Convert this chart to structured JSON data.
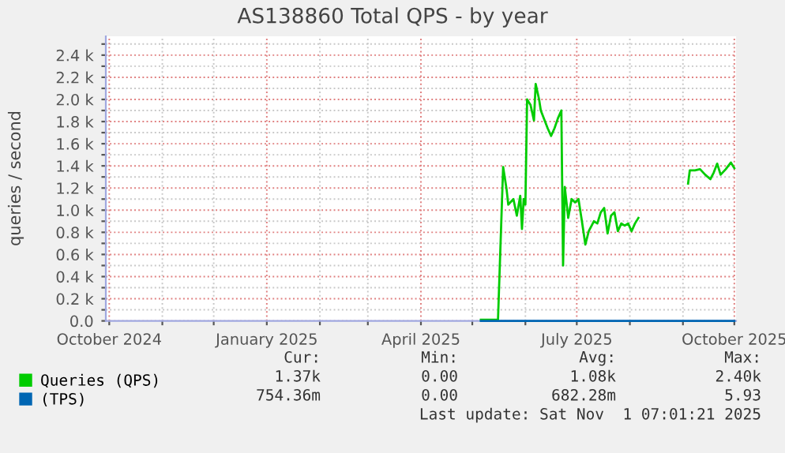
{
  "chart_data": {
    "type": "line",
    "title": "AS138860 Total QPS - by year",
    "ylabel": "queries / second",
    "series": [
      {
        "name": "Queries (QPS)",
        "color": "#00cc00",
        "x": [
          "2025-05-06",
          "2025-05-16",
          "2025-05-19",
          "2025-05-21",
          "2025-05-22",
          "2025-05-25",
          "2025-05-27",
          "2025-05-29",
          "2025-05-30",
          "2025-05-31",
          "2025-06-01",
          "2025-06-02",
          "2025-06-04",
          "2025-06-06",
          "2025-06-07",
          "2025-06-09",
          "2025-06-10",
          "2025-06-14",
          "2025-06-16",
          "2025-06-18",
          "2025-06-20",
          "2025-06-22",
          "2025-06-23",
          "2025-06-24",
          "2025-06-26",
          "2025-06-28",
          "2025-06-30",
          "2025-07-02",
          "2025-07-04",
          "2025-07-06",
          "2025-07-08",
          "2025-07-11",
          "2025-07-13",
          "2025-07-15",
          "2025-07-17",
          "2025-07-19",
          "2025-07-21",
          "2025-07-23",
          "2025-07-25",
          "2025-07-27",
          "2025-07-29",
          "2025-07-31",
          "2025-08-02",
          "2025-08-04",
          "2025-08-06",
          "2025-08-20",
          "2025-09-04",
          "2025-09-05",
          "2025-09-08",
          "2025-09-11",
          "2025-09-14",
          "2025-09-17",
          "2025-09-19",
          "2025-09-21",
          "2025-09-23",
          "2025-09-26",
          "2025-09-29",
          "2025-10-01"
        ],
        "values": [
          10,
          10,
          1390,
          1190,
          1050,
          1100,
          950,
          1130,
          830,
          1100,
          1050,
          2000,
          1950,
          1810,
          2140,
          2000,
          1900,
          1740,
          1670,
          1740,
          1830,
          1900,
          500,
          1210,
          930,
          1100,
          1070,
          1100,
          900,
          690,
          810,
          900,
          880,
          980,
          1020,
          790,
          950,
          980,
          810,
          880,
          860,
          880,
          810,
          880,
          930,
          null,
          1240,
          1360,
          1360,
          1370,
          1320,
          1280,
          1340,
          1420,
          1320,
          1370,
          1430,
          1380
        ]
      },
      {
        "name": "(TPS)",
        "color": "#0066b3",
        "x": [
          "2025-05-06",
          "2025-10-01"
        ],
        "values": [
          0,
          0
        ]
      }
    ],
    "xlim": [
      "2024-09-29",
      "2025-10-02"
    ],
    "xticks": [
      {
        "value": "2024-10-01",
        "label": "October 2024"
      },
      {
        "value": "2024-11-01",
        "label": null
      },
      {
        "value": "2024-12-01",
        "label": null
      },
      {
        "value": "2025-01-01",
        "label": "January 2025"
      },
      {
        "value": "2025-02-01",
        "label": null
      },
      {
        "value": "2025-03-01",
        "label": null
      },
      {
        "value": "2025-04-01",
        "label": "April 2025"
      },
      {
        "value": "2025-05-01",
        "label": null
      },
      {
        "value": "2025-06-01",
        "label": null
      },
      {
        "value": "2025-07-01",
        "label": "July 2025"
      },
      {
        "value": "2025-08-01",
        "label": null
      },
      {
        "value": "2025-09-01",
        "label": null
      },
      {
        "value": "2025-10-01",
        "label": "October 2025"
      }
    ],
    "ylim": [
      0,
      2570
    ],
    "yticks": [
      {
        "value": 0,
        "label": "0.0"
      },
      {
        "value": 100,
        "label": null
      },
      {
        "value": 200,
        "label": "0.2 k"
      },
      {
        "value": 300,
        "label": null
      },
      {
        "value": 400,
        "label": "0.4 k"
      },
      {
        "value": 500,
        "label": null
      },
      {
        "value": 600,
        "label": "0.6 k"
      },
      {
        "value": 700,
        "label": null
      },
      {
        "value": 800,
        "label": "0.8 k"
      },
      {
        "value": 900,
        "label": null
      },
      {
        "value": 1000,
        "label": "1.0 k"
      },
      {
        "value": 1100,
        "label": null
      },
      {
        "value": 1200,
        "label": "1.2 k"
      },
      {
        "value": 1300,
        "label": null
      },
      {
        "value": 1400,
        "label": "1.4 k"
      },
      {
        "value": 1500,
        "label": null
      },
      {
        "value": 1600,
        "label": "1.6 k"
      },
      {
        "value": 1700,
        "label": null
      },
      {
        "value": 1800,
        "label": "1.8 k"
      },
      {
        "value": 1900,
        "label": null
      },
      {
        "value": 2000,
        "label": "2.0 k"
      },
      {
        "value": 2100,
        "label": null
      },
      {
        "value": 2200,
        "label": "2.2 k"
      },
      {
        "value": 2300,
        "label": null
      },
      {
        "value": 2400,
        "label": "2.4 k"
      },
      {
        "value": 2500,
        "label": null
      }
    ],
    "grid": true,
    "legend": "bottom",
    "marker": "none",
    "line_style": "solid",
    "annotations": [
      "Cur:",
      "Min:",
      "Avg:",
      "Max:",
      "1.37k",
      "0.00",
      "1.08k",
      "2.40k",
      "754.36m",
      "0.00",
      "682.28m",
      "5.93",
      "Last update: Sat Nov  1 07:01:21 2025"
    ]
  }
}
